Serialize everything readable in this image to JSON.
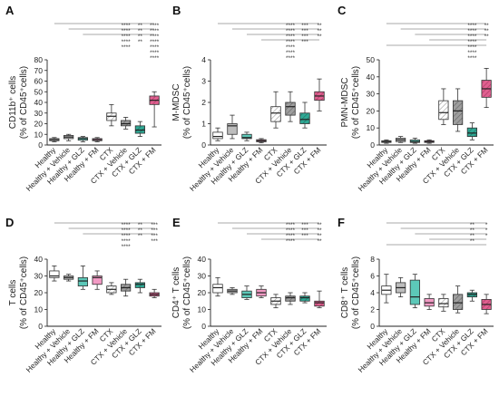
{
  "chart_data": [
    {
      "type": "boxplot",
      "panel": "A",
      "ylabel_line1": "CD11b⁺ cells",
      "ylabel_line2": "(% of CD45⁺cells)",
      "ylim": [
        0,
        80
      ],
      "yticks": [
        "0",
        "10",
        "20",
        "30",
        "40",
        "50",
        "60",
        "70",
        "80"
      ],
      "categories": [
        "Healthy",
        "Healthy + Vehicle",
        "Healthy + GLZ",
        "Healthy + FM",
        "CTX",
        "CTX + Vehicle",
        "CTX + GLZ",
        "CTX + FM"
      ],
      "boxes": [
        {
          "min": 3,
          "q1": 4,
          "median": 5,
          "q3": 6,
          "max": 7
        },
        {
          "min": 4,
          "q1": 6,
          "median": 7.5,
          "q3": 9,
          "max": 10
        },
        {
          "min": 3,
          "q1": 4.5,
          "median": 6,
          "q3": 7,
          "max": 8
        },
        {
          "min": 3,
          "q1": 4,
          "median": 5,
          "q3": 6,
          "max": 7
        },
        {
          "min": 18,
          "q1": 23,
          "median": 27,
          "q3": 30,
          "max": 38
        },
        {
          "min": 15,
          "q1": 18,
          "median": 20,
          "q3": 23,
          "max": 26
        },
        {
          "min": 8,
          "q1": 11,
          "median": 14,
          "q3": 18,
          "max": 22
        },
        {
          "min": 17,
          "q1": 38,
          "median": 42,
          "q3": 46,
          "max": 50
        }
      ],
      "significance": [
        {
          "text": "****",
          "rows": 5
        },
        {
          "text": "**",
          "rows": 4
        },
        {
          "text": "****",
          "rows": 7
        }
      ]
    },
    {
      "type": "boxplot",
      "panel": "B",
      "ylabel_line1": "M-MDSC",
      "ylabel_line2": "(% of CD45⁺cells)",
      "ylim": [
        0,
        4
      ],
      "yticks": [
        "0",
        "1",
        "2",
        "3",
        "4"
      ],
      "categories": [
        "Healthy",
        "Healthy + Vehicle",
        "Healthy + GLZ",
        "Healthy + FM",
        "CTX",
        "CTX + Vehicle",
        "CTX + GLZ",
        "CTX + FM"
      ],
      "boxes": [
        {
          "min": 0.2,
          "q1": 0.3,
          "median": 0.4,
          "q3": 0.6,
          "max": 0.8
        },
        {
          "min": 0.3,
          "q1": 0.5,
          "median": 0.9,
          "q3": 1.0,
          "max": 1.4
        },
        {
          "min": 0.2,
          "q1": 0.3,
          "median": 0.35,
          "q3": 0.5,
          "max": 0.6
        },
        {
          "min": 0.1,
          "q1": 0.15,
          "median": 0.2,
          "q3": 0.25,
          "max": 0.3
        },
        {
          "min": 0.8,
          "q1": 1.1,
          "median": 1.5,
          "q3": 1.8,
          "max": 2.5
        },
        {
          "min": 1.1,
          "q1": 1.4,
          "median": 1.8,
          "q3": 2.0,
          "max": 2.5
        },
        {
          "min": 0.8,
          "q1": 1.0,
          "median": 1.2,
          "q3": 1.5,
          "max": 2.0
        },
        {
          "min": 1.6,
          "q1": 2.1,
          "median": 2.3,
          "q3": 2.5,
          "max": 3.1
        }
      ],
      "significance": [
        {
          "text": "****",
          "rows": 7
        },
        {
          "text": "***",
          "rows": 4
        },
        {
          "text": "**",
          "rows": 3
        }
      ]
    },
    {
      "type": "boxplot",
      "panel": "C",
      "ylabel_line1": "PMN-MDSC",
      "ylabel_line2": "(% of CD45⁺cells)",
      "ylim": [
        0,
        50
      ],
      "yticks": [
        "0",
        "10",
        "20",
        "30",
        "40",
        "50"
      ],
      "categories": [
        "Healthy",
        "Healthy + Vehicle",
        "Healthy + GLZ",
        "Healthy + FM",
        "CTX",
        "CTX + Vehicle",
        "CTX + GLZ",
        "CTX + FM"
      ],
      "boxes": [
        {
          "min": 1,
          "q1": 1.5,
          "median": 2,
          "q3": 2.5,
          "max": 3
        },
        {
          "min": 1.5,
          "q1": 2,
          "median": 3,
          "q3": 4,
          "max": 5
        },
        {
          "min": 1,
          "q1": 1.5,
          "median": 2,
          "q3": 3,
          "max": 4
        },
        {
          "min": 1,
          "q1": 1.5,
          "median": 2,
          "q3": 2.5,
          "max": 3
        },
        {
          "min": 12,
          "q1": 15,
          "median": 19,
          "q3": 26,
          "max": 33
        },
        {
          "min": 8,
          "q1": 12,
          "median": 20,
          "q3": 26,
          "max": 33
        },
        {
          "min": 3,
          "q1": 5,
          "median": 7,
          "q3": 10,
          "max": 13
        },
        {
          "min": 22,
          "q1": 28,
          "median": 33,
          "q3": 38,
          "max": 45
        }
      ],
      "significance": [
        {
          "text": "****",
          "rows": 7
        },
        {
          "text": "**",
          "rows": 3
        }
      ]
    },
    {
      "type": "boxplot",
      "panel": "D",
      "ylabel_line1": "T cells",
      "ylabel_line2": "(% of CD45⁺cells)",
      "ylim": [
        0,
        40
      ],
      "yticks": [
        "0",
        "10",
        "20",
        "30",
        "40"
      ],
      "categories": [
        "Healthy",
        "Healthy + Vehicle",
        "Healthy + GLZ",
        "Healthy + FM",
        "CTX",
        "CTX + Vehicle",
        "CTX + GLZ",
        "CTX + FM"
      ],
      "boxes": [
        {
          "min": 27,
          "q1": 29,
          "median": 30,
          "q3": 33,
          "max": 36
        },
        {
          "min": 27,
          "q1": 28,
          "median": 29,
          "q3": 30,
          "max": 31
        },
        {
          "min": 22,
          "q1": 24,
          "median": 27,
          "q3": 29,
          "max": 36
        },
        {
          "min": 22,
          "q1": 25,
          "median": 29,
          "q3": 30,
          "max": 33
        },
        {
          "min": 19,
          "q1": 20,
          "median": 22,
          "q3": 24,
          "max": 26
        },
        {
          "min": 18,
          "q1": 21,
          "median": 23,
          "q3": 25,
          "max": 28
        },
        {
          "min": 20,
          "q1": 23,
          "median": 25,
          "q3": 26,
          "max": 28
        },
        {
          "min": 17,
          "q1": 18,
          "median": 19,
          "q3": 20,
          "max": 22
        }
      ],
      "significance": [
        {
          "text": "****",
          "rows": 5
        },
        {
          "text": "**",
          "rows": 3
        },
        {
          "text": "***",
          "rows": 4
        }
      ]
    },
    {
      "type": "boxplot",
      "panel": "E",
      "ylabel_line1": "CD4⁺ T cells",
      "ylabel_line2": "(% of CD45⁺cells)",
      "ylim": [
        0,
        40
      ],
      "yticks": [
        "0",
        "10",
        "20",
        "30",
        "40"
      ],
      "categories": [
        "Healthy",
        "Healthy + Vehicle",
        "Healthy + GLZ",
        "Healthy + FM",
        "CTX",
        "CTX + Vehicle",
        "CTX + GLZ",
        "CTX + FM"
      ],
      "boxes": [
        {
          "min": 18,
          "q1": 20,
          "median": 23,
          "q3": 25,
          "max": 29
        },
        {
          "min": 19,
          "q1": 20,
          "median": 21,
          "q3": 22,
          "max": 23
        },
        {
          "min": 16,
          "q1": 17,
          "median": 19,
          "q3": 21,
          "max": 24
        },
        {
          "min": 17,
          "q1": 18,
          "median": 20,
          "q3": 22,
          "max": 24
        },
        {
          "min": 11,
          "q1": 13,
          "median": 15,
          "q3": 17,
          "max": 19
        },
        {
          "min": 13,
          "q1": 15,
          "median": 17,
          "q3": 18,
          "max": 20
        },
        {
          "min": 14,
          "q1": 15,
          "median": 17,
          "q3": 18,
          "max": 20
        },
        {
          "min": 11,
          "q1": 12,
          "median": 14,
          "q3": 15,
          "max": 21
        }
      ],
      "significance": [
        {
          "text": "****",
          "rows": 4
        },
        {
          "text": "***",
          "rows": 3
        },
        {
          "text": "**",
          "rows": 4
        }
      ]
    },
    {
      "type": "boxplot",
      "panel": "F",
      "ylabel_line1": "CD8⁺ T cells",
      "ylabel_line2": "(% of CD45⁺cells)",
      "ylim": [
        0,
        8
      ],
      "yticks": [
        "0",
        "2",
        "4",
        "6",
        "8"
      ],
      "categories": [
        "Healthy",
        "Healthy + Vehicle",
        "Healthy + GLZ",
        "Healthy + FM",
        "CTX",
        "CTX + Vehicle",
        "CTX + GLZ",
        "CTX + FM"
      ],
      "boxes": [
        {
          "min": 2.8,
          "q1": 3.8,
          "median": 4.3,
          "q3": 4.8,
          "max": 6.2
        },
        {
          "min": 3.5,
          "q1": 4.0,
          "median": 4.6,
          "q3": 5.2,
          "max": 5.8
        },
        {
          "min": 2.2,
          "q1": 2.6,
          "median": 3.5,
          "q3": 5.5,
          "max": 6.2
        },
        {
          "min": 2.0,
          "q1": 2.4,
          "median": 2.8,
          "q3": 3.3,
          "max": 3.8
        },
        {
          "min": 1.8,
          "q1": 2.3,
          "median": 2.7,
          "q3": 3.3,
          "max": 3.8
        },
        {
          "min": 1.6,
          "q1": 2.0,
          "median": 2.8,
          "q3": 3.8,
          "max": 4.8
        },
        {
          "min": 3.0,
          "q1": 3.5,
          "median": 3.8,
          "q3": 4.0,
          "max": 4.3
        },
        {
          "min": 1.5,
          "q1": 2.0,
          "median": 2.6,
          "q3": 3.2,
          "max": 3.8
        }
      ],
      "significance": [
        {
          "text": "**",
          "rows": 4
        },
        {
          "text": "*",
          "rows": 3
        }
      ]
    }
  ],
  "styles": {
    "fills": [
      "#ffffff",
      "#bdbdbd",
      "#5cc8b8",
      "#f29ac4",
      "#ffffff",
      "#9e9e9e",
      "#2fa894",
      "#e0608f"
    ],
    "hatched": [
      false,
      false,
      false,
      false,
      true,
      true,
      true,
      true
    ]
  }
}
